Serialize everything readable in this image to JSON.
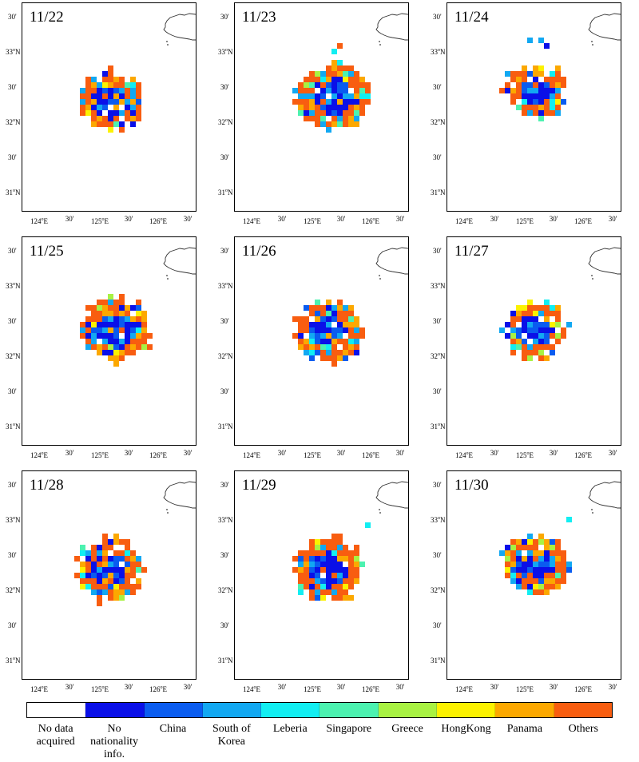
{
  "lat_labels": [
    {
      "key": "30a",
      "text": "30'"
    },
    {
      "key": "33",
      "text": "33",
      "sup": "o",
      "suffix": "N"
    },
    {
      "key": "30b",
      "text": "30'"
    },
    {
      "key": "32",
      "text": "32",
      "sup": "o",
      "suffix": "N"
    },
    {
      "key": "30c",
      "text": "30'"
    },
    {
      "key": "31",
      "text": "31",
      "sup": "o",
      "suffix": "N"
    }
  ],
  "lon_labels": [
    {
      "key": "124",
      "text": "124",
      "sup": "o",
      "suffix": "E"
    },
    {
      "key": "30a",
      "text": "30'"
    },
    {
      "key": "125",
      "text": "125",
      "sup": "o",
      "suffix": "E"
    },
    {
      "key": "30b",
      "text": "30'"
    },
    {
      "key": "126",
      "text": "126",
      "sup": "o",
      "suffix": "E"
    },
    {
      "key": "30c",
      "text": "30'"
    }
  ],
  "panels": [
    {
      "date": "11/22"
    },
    {
      "date": "11/23"
    },
    {
      "date": "11/24"
    },
    {
      "date": "11/25"
    },
    {
      "date": "11/26"
    },
    {
      "date": "11/27"
    },
    {
      "date": "11/28"
    },
    {
      "date": "11/29"
    },
    {
      "date": "11/30"
    }
  ],
  "legend": [
    {
      "label": "No data acquired",
      "color": "#ffffff"
    },
    {
      "label": "No nationality info.",
      "color": "#0a10e8"
    },
    {
      "label": "China",
      "color": "#0a5cf0"
    },
    {
      "label": "South of Korea",
      "color": "#12a8f2"
    },
    {
      "label": "Leberia",
      "color": "#12eef2"
    },
    {
      "label": "Singapore",
      "color": "#4cf2b0"
    },
    {
      "label": "Greece",
      "color": "#a8f242"
    },
    {
      "label": "HongKong",
      "color": "#fcf200"
    },
    {
      "label": "Panama",
      "color": "#fca800"
    },
    {
      "label": "Others",
      "color": "#f85d10"
    }
  ]
}
